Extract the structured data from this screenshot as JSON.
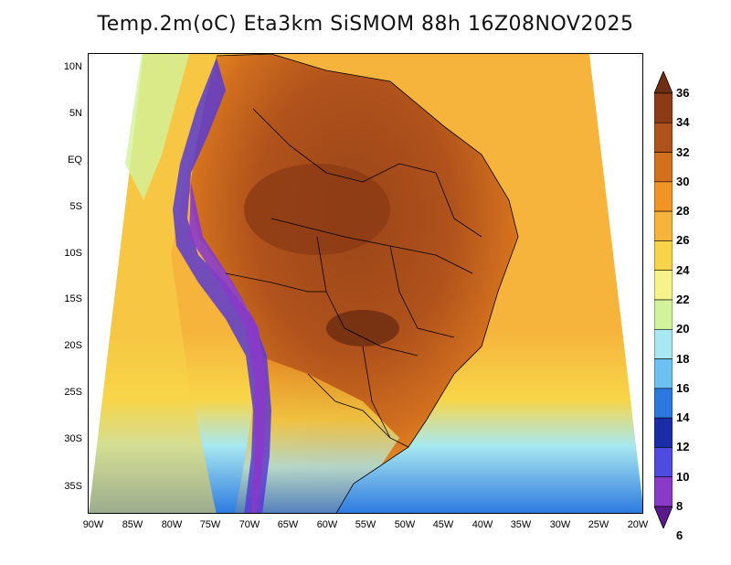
{
  "title": "Temp.2m(oC) Eta3km SiSMOM 88h 16Z08NOV2025",
  "map": {
    "lat_labels": [
      "10N",
      "5N",
      "EQ",
      "5S",
      "10S",
      "15S",
      "20S",
      "25S",
      "30S",
      "35S"
    ],
    "lon_labels": [
      "90W",
      "85W",
      "80W",
      "75W",
      "70W",
      "65W",
      "60W",
      "55W",
      "50W",
      "45W",
      "40W",
      "35W",
      "30W",
      "25W",
      "20W"
    ],
    "ocean_color": "#f6b43c",
    "land_hot_color": "#a8521e",
    "andes_color": "#5a3bd0"
  },
  "colorbar": {
    "levels": [
      "36",
      "34",
      "32",
      "30",
      "28",
      "26",
      "24",
      "22",
      "20",
      "18",
      "16",
      "14",
      "12",
      "10",
      "8",
      "6"
    ],
    "colors": [
      "#6e2e12",
      "#8c3b15",
      "#b0521c",
      "#d2701e",
      "#ef9425",
      "#f6b43c",
      "#f8d548",
      "#f7f28a",
      "#d2f39a",
      "#a8e8f0",
      "#6cc0f4",
      "#2a78e0",
      "#1a2ca8",
      "#4f4be0",
      "#8a3ac8",
      "#5b1a8c"
    ]
  }
}
